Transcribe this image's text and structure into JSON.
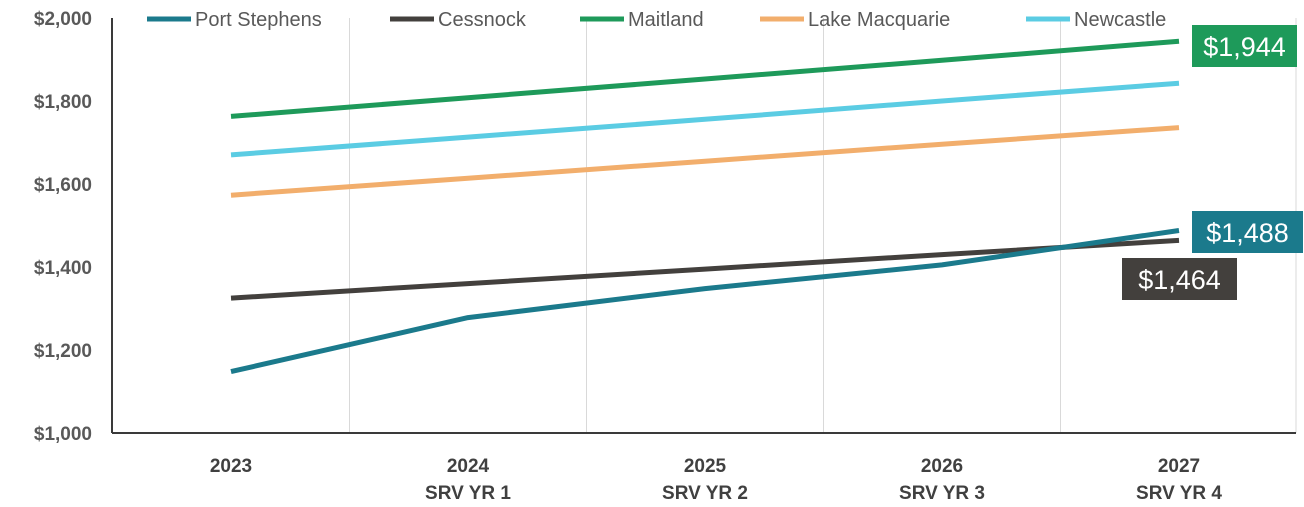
{
  "chart_data": {
    "type": "line",
    "categories": [
      "2023",
      "2024",
      "2025",
      "2026",
      "2027"
    ],
    "category_sublabels": [
      "",
      "SRV YR 1",
      "SRV YR 2",
      "SRV YR 3",
      "SRV YR 4"
    ],
    "ylim": [
      1000,
      2000
    ],
    "yticks": [
      1000,
      1200,
      1400,
      1600,
      1800,
      2000
    ],
    "ytick_labels": [
      "$1,000",
      "$1,200",
      "$1,400",
      "$1,600",
      "$1,800",
      "$2,000"
    ],
    "grid": "vertical",
    "legend": "top",
    "series": [
      {
        "name": "Port Stephens",
        "color": "#1B7A8C",
        "values": [
          1148,
          1278,
          1348,
          1405,
          1488
        ]
      },
      {
        "name": "Cessnock",
        "color": "#43403D",
        "values": [
          1325,
          1360,
          1395,
          1430,
          1464
        ]
      },
      {
        "name": "Maitland",
        "color": "#1E9A5A",
        "values": [
          1763,
          1808,
          1853,
          1898,
          1944
        ]
      },
      {
        "name": "Lake Macquarie",
        "color": "#F2AE6C",
        "values": [
          1573,
          1614,
          1655,
          1696,
          1736
        ]
      },
      {
        "name": "Newcastle",
        "color": "#5BCCE3",
        "values": [
          1670,
          1713,
          1756,
          1800,
          1843
        ]
      }
    ],
    "annotations": [
      {
        "text": "$1,944",
        "series": "Maitland",
        "bg": "#1E9A5A"
      },
      {
        "text": "$1,488",
        "series": "Port Stephens",
        "bg": "#1B7A8C"
      },
      {
        "text": "$1,464",
        "series": "Cessnock",
        "bg": "#43403D"
      }
    ]
  }
}
